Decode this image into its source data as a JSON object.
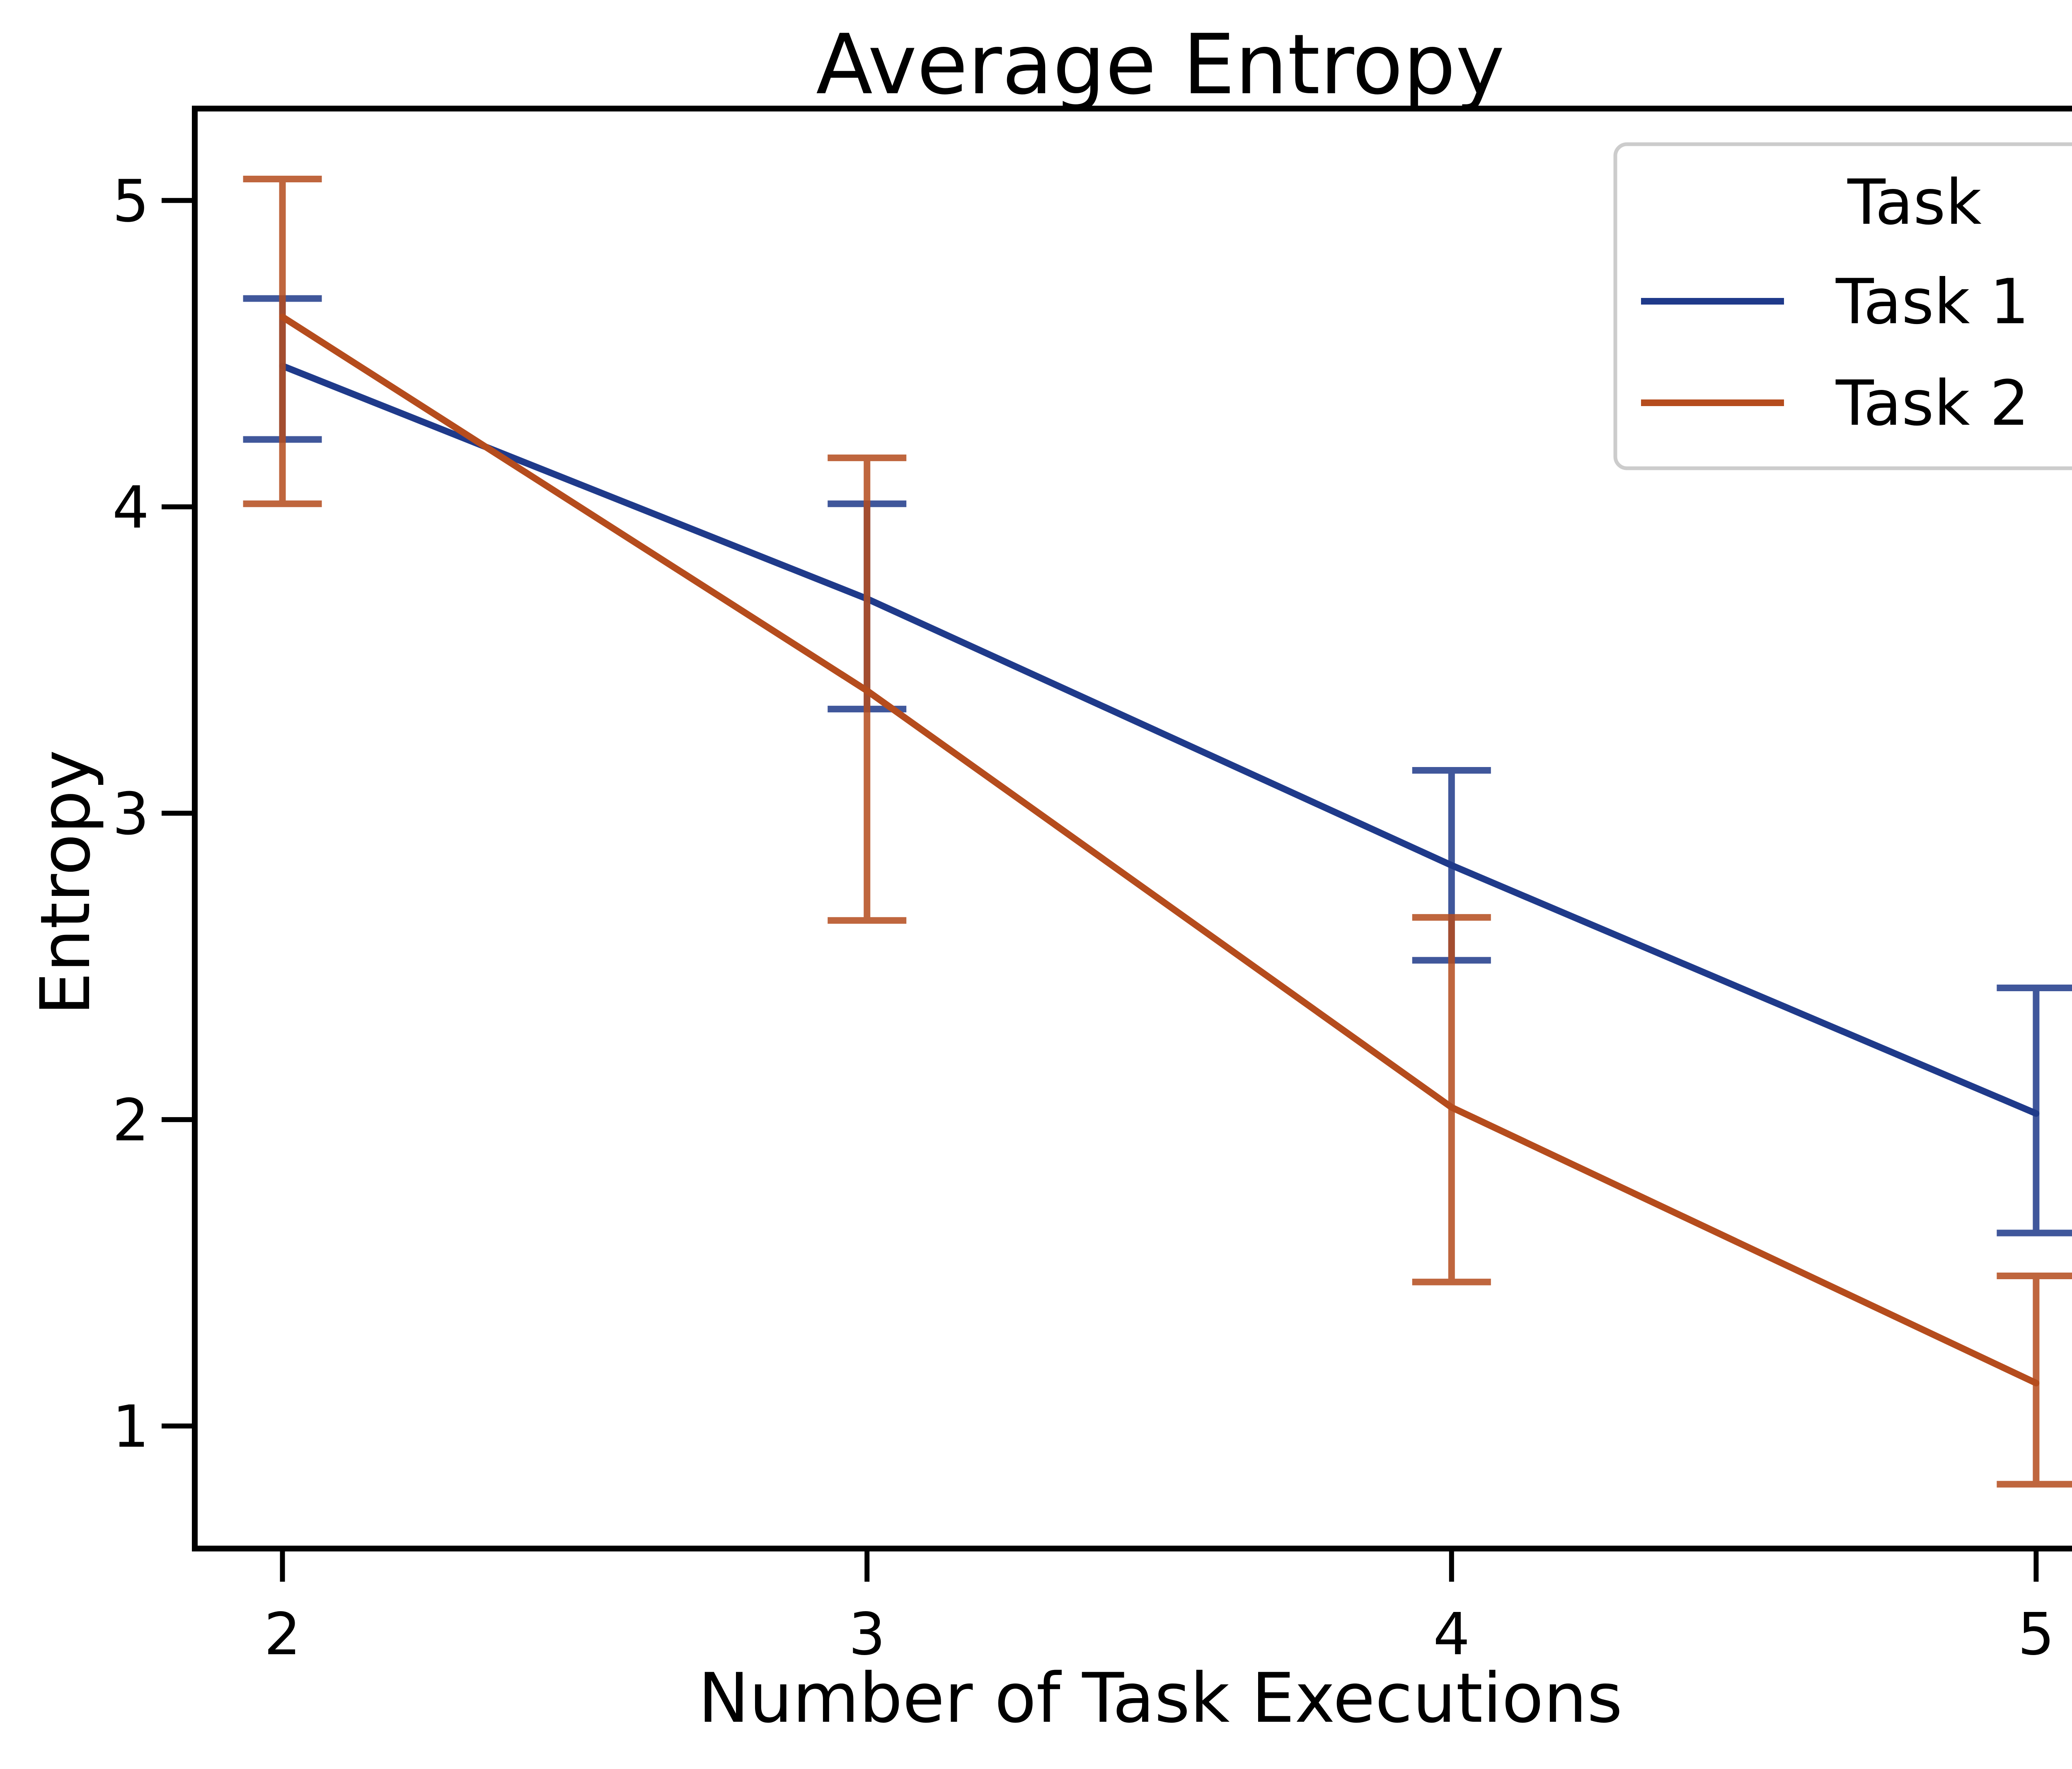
{
  "chart_data": {
    "type": "line",
    "title": "Average Entropy",
    "xlabel": "Number of Task Executions",
    "ylabel": "Entropy",
    "x": [
      2,
      3,
      4,
      5
    ],
    "x_tick_labels": [
      "2",
      "3",
      "4",
      "5"
    ],
    "xlim": [
      1.85,
      5.15
    ],
    "ylim": [
      0.6,
      5.3
    ],
    "y_ticks": [
      1,
      2,
      3,
      4,
      5
    ],
    "y_tick_labels": [
      "1",
      "2",
      "3",
      "4",
      "5"
    ],
    "grid": false,
    "legend": {
      "title": "Task",
      "placement": "top-right"
    },
    "series": [
      {
        "name": "Task 1",
        "color": "#1f3a8a",
        "values": [
          4.46,
          3.7,
          2.83,
          2.02
        ],
        "err_low": [
          4.22,
          3.34,
          2.52,
          1.63
        ],
        "err_high": [
          4.68,
          4.01,
          3.14,
          2.43
        ]
      },
      {
        "name": "Task 2",
        "color": "#b54c1d",
        "values": [
          4.62,
          3.4,
          2.04,
          1.14
        ],
        "err_low": [
          4.01,
          2.65,
          1.47,
          0.81
        ],
        "err_high": [
          5.07,
          4.16,
          2.66,
          1.49
        ]
      }
    ]
  }
}
